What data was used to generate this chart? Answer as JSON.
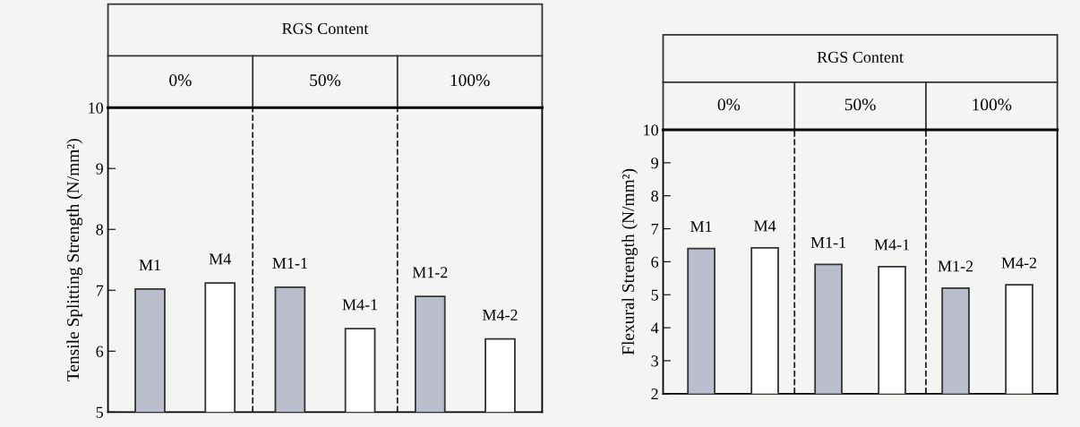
{
  "chart_data": [
    {
      "type": "bar",
      "ylabel": "Tensile Splitting Strength (N/mm²)",
      "categories": [
        "M1",
        "M4",
        "M1-1",
        "M4-1",
        "M1-2",
        "M4-2"
      ],
      "values": [
        7.02,
        7.12,
        7.05,
        6.37,
        6.9,
        6.2
      ],
      "colors": [
        "#b9bdcc",
        "#ffffff",
        "#b9bdcc",
        "#ffffff",
        "#b9bdcc",
        "#ffffff"
      ],
      "ylim": [
        5,
        10
      ],
      "yticks": [
        5,
        6,
        7,
        8,
        9,
        10
      ],
      "tick_labels": "y",
      "annotations": [
        "RGS Content",
        "0%",
        "50%",
        "100%"
      ]
    },
    {
      "type": "bar",
      "ylabel": "Flexural Strength (N/mm²)",
      "categories": [
        "M1",
        "M4",
        "M1-1",
        "M4-1",
        "M1-2",
        "M4-2"
      ],
      "values": [
        6.4,
        6.42,
        5.92,
        5.85,
        5.2,
        5.3
      ],
      "colors": [
        "#b9bdcc",
        "#ffffff",
        "#b9bdcc",
        "#ffffff",
        "#b9bdcc",
        "#ffffff"
      ],
      "ylim": [
        2,
        10
      ],
      "yticks": [
        2,
        3,
        4,
        5,
        6,
        7,
        8,
        9,
        10
      ],
      "tick_labels": "y",
      "annotations": [
        "RGS Content",
        "0%",
        "50%",
        "100%"
      ]
    }
  ]
}
